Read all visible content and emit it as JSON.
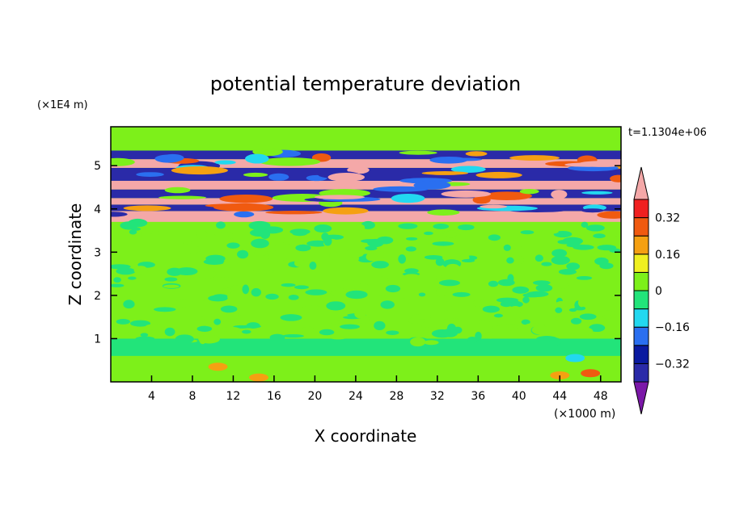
{
  "chart_data": {
    "type": "heatmap",
    "title": "potential temperature deviation",
    "xlabel": "X coordinate",
    "ylabel": "Z coordinate",
    "x_unit": "(×1000 m)",
    "y_unit": "(×1E4 m)",
    "time_label": "t=1.1304e+06",
    "xlim": [
      0,
      50
    ],
    "ylim": [
      0,
      5.9
    ],
    "x_ticks": [
      "4",
      "8",
      "12",
      "16",
      "20",
      "24",
      "28",
      "32",
      "36",
      "40",
      "44",
      "48"
    ],
    "y_ticks": [
      "1",
      "2",
      "3",
      "4",
      "5"
    ],
    "colorbar": {
      "labels": [
        "0.32",
        "0.16",
        "0",
        "−0.16",
        "−0.32"
      ],
      "levels": [
        -0.4,
        -0.32,
        -0.24,
        -0.16,
        -0.08,
        0,
        0.08,
        0.16,
        0.24,
        0.32,
        0.4
      ],
      "colors": [
        "#7b18a8",
        "#2a2aa8",
        "#0a1aa0",
        "#2a6ff0",
        "#22d8f0",
        "#22e47a",
        "#7df01a",
        "#f0f020",
        "#f5a012",
        "#f05a10",
        "#f02020",
        "#f4a8a8"
      ]
    },
    "bands": [
      {
        "z_from": 0.0,
        "z_to": 0.6,
        "level": "0.04"
      },
      {
        "z_from": 0.6,
        "z_to": 1.0,
        "level": "-0.02"
      },
      {
        "z_from": 1.0,
        "z_to": 3.7,
        "level": "0.02"
      },
      {
        "z_from": 3.7,
        "z_to": 3.95,
        "level": "0.4"
      },
      {
        "z_from": 3.95,
        "z_to": 4.1,
        "level": "-0.4"
      },
      {
        "z_from": 4.1,
        "z_to": 4.25,
        "level": "0.4"
      },
      {
        "z_from": 4.25,
        "z_to": 4.45,
        "level": "-0.4"
      },
      {
        "z_from": 4.45,
        "z_to": 4.65,
        "level": "0.4"
      },
      {
        "z_from": 4.65,
        "z_to": 4.95,
        "level": "-0.4"
      },
      {
        "z_from": 4.95,
        "z_to": 5.15,
        "level": "0.4"
      },
      {
        "z_from": 5.15,
        "z_to": 5.35,
        "level": "-0.4"
      },
      {
        "z_from": 5.35,
        "z_to": 5.9,
        "level": "0.02"
      }
    ]
  }
}
